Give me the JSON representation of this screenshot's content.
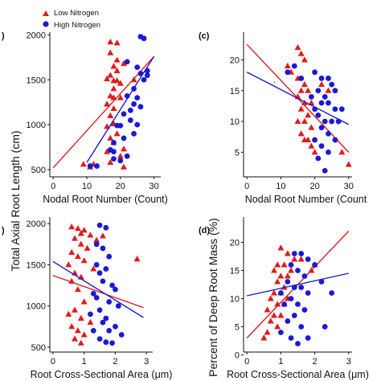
{
  "legend": {
    "low_label": "Low Nitrogen",
    "high_label": "High Nitrogen",
    "low_color": "#e11b1b",
    "high_color": "#1a1ad4",
    "low_marker": "triangle",
    "high_marker": "circle"
  },
  "ylabels": {
    "left": "Total Axial Root Length (cm)",
    "right": "Percent of Deep Root Mass (%)"
  },
  "chart_data": [
    {
      "panel": "a",
      "panel_label": ")",
      "type": "scatter",
      "xlabel": "Nodal Root Number (Count)",
      "xlim": [
        -1,
        32
      ],
      "ylim": [
        420,
        2030
      ],
      "xticks": [
        0,
        10,
        20,
        30
      ],
      "yticks": [
        500,
        1000,
        1500,
        2000
      ],
      "axes": "left-bottom",
      "series": [
        {
          "name": "Low Nitrogen",
          "marker": "triangle",
          "points": [
            [
              9,
              560
            ],
            [
              11,
              530
            ],
            [
              12,
              560
            ],
            [
              17,
              1920
            ],
            [
              19,
              1910
            ],
            [
              17,
              1800
            ],
            [
              19,
              1720
            ],
            [
              18,
              1650
            ],
            [
              17,
              1550
            ],
            [
              19,
              1600
            ],
            [
              21,
              1680
            ],
            [
              16,
              1510
            ],
            [
              18,
              1490
            ],
            [
              19,
              1490
            ],
            [
              20,
              1460
            ],
            [
              18,
              1400
            ],
            [
              17,
              1320
            ],
            [
              18,
              1300
            ],
            [
              20,
              1300
            ],
            [
              16,
              1230
            ],
            [
              18,
              1180
            ],
            [
              17,
              1100
            ],
            [
              18,
              1010
            ],
            [
              16,
              980
            ],
            [
              19,
              900
            ],
            [
              17,
              850
            ],
            [
              18,
              800
            ],
            [
              21,
              730
            ],
            [
              16,
              700
            ],
            [
              20,
              650
            ],
            [
              17,
              580
            ],
            [
              21,
              530
            ],
            [
              24,
              1500
            ]
          ],
          "fit": [
            [
              0,
              520
            ],
            [
              30,
              1760
            ]
          ]
        },
        {
          "name": "High Nitrogen",
          "marker": "circle",
          "points": [
            [
              26,
              1980
            ],
            [
              27,
              1960
            ],
            [
              25,
              1640
            ],
            [
              28,
              1600
            ],
            [
              26,
              1570
            ],
            [
              28,
              1550
            ],
            [
              24,
              1400
            ],
            [
              25,
              1300
            ],
            [
              22,
              1320
            ],
            [
              24,
              1230
            ],
            [
              26,
              1200
            ],
            [
              23,
              1160
            ],
            [
              21,
              1120
            ],
            [
              23,
              1050
            ],
            [
              25,
              1000
            ],
            [
              20,
              990
            ],
            [
              19,
              990
            ],
            [
              24,
              900
            ],
            [
              21,
              850
            ],
            [
              18,
              800
            ],
            [
              17,
              720
            ],
            [
              18,
              700
            ],
            [
              22,
              650
            ],
            [
              18,
              620
            ],
            [
              20,
              600
            ],
            [
              11,
              540
            ],
            [
              13,
              540
            ],
            [
              22,
              1700
            ],
            [
              27,
              1500
            ]
          ],
          "fit": [
            [
              10,
              580
            ],
            [
              30,
              1760
            ]
          ]
        }
      ]
    },
    {
      "panel": "c",
      "panel_label": "(c)",
      "type": "scatter",
      "xlabel": "Nodal Root Number (Count",
      "xlim": [
        -1,
        31
      ],
      "ylim": [
        1,
        24.5
      ],
      "xticks": [
        0,
        10,
        20,
        30
      ],
      "yticks": [
        5,
        10,
        15,
        20
      ],
      "axes": "left-bottom",
      "series": [
        {
          "name": "Low Nitrogen",
          "marker": "triangle",
          "points": [
            [
              15,
              22
            ],
            [
              16,
              21
            ],
            [
              17,
              20
            ],
            [
              12,
              19
            ],
            [
              13,
              18
            ],
            [
              15,
              17
            ],
            [
              17,
              16
            ],
            [
              18,
              15
            ],
            [
              16,
              15
            ],
            [
              15,
              14
            ],
            [
              17,
              13
            ],
            [
              19,
              13
            ],
            [
              16,
              12
            ],
            [
              18,
              11
            ],
            [
              17,
              10
            ],
            [
              15,
              10
            ],
            [
              19,
              9
            ],
            [
              16,
              8
            ],
            [
              18,
              7
            ],
            [
              17,
              7
            ],
            [
              19,
              6
            ],
            [
              20,
              5
            ],
            [
              28,
              5
            ],
            [
              30,
              3
            ],
            [
              22,
              16
            ],
            [
              24,
              15
            ]
          ],
          "fit": [
            [
              0,
              22.5
            ],
            [
              30,
              5
            ]
          ]
        },
        {
          "name": "High Nitrogen",
          "marker": "circle",
          "points": [
            [
              12,
              18
            ],
            [
              20,
              18
            ],
            [
              22,
              17
            ],
            [
              24,
              17
            ],
            [
              25,
              16
            ],
            [
              26,
              15
            ],
            [
              21,
              15
            ],
            [
              23,
              14
            ],
            [
              19,
              14
            ],
            [
              22,
              13
            ],
            [
              24,
              13
            ],
            [
              20,
              12
            ],
            [
              26,
              12
            ],
            [
              28,
              12
            ],
            [
              21,
              11
            ],
            [
              23,
              10
            ],
            [
              25,
              10
            ],
            [
              27,
              10
            ],
            [
              22,
              9
            ],
            [
              24,
              8
            ],
            [
              20,
              7
            ],
            [
              26,
              7
            ],
            [
              22,
              6
            ],
            [
              24,
              5
            ],
            [
              21,
              4
            ],
            [
              23,
              2
            ],
            [
              14,
              19
            ],
            [
              16,
              17
            ]
          ],
          "fit": [
            [
              0,
              18
            ],
            [
              30,
              9.5
            ]
          ]
        }
      ]
    },
    {
      "panel": "b",
      "panel_label": ")",
      "type": "scatter",
      "xlabel": "Root Cross-Sectional Area (",
      "xlabel_unit": "μm",
      "xlabel_close": ")",
      "xlim": [
        -0.1,
        3.2
      ],
      "ylim": [
        440,
        2080
      ],
      "xticks": [
        0,
        1,
        2,
        3
      ],
      "yticks": [
        500,
        1000,
        1500,
        2000
      ],
      "axes": "left-bottom",
      "series": [
        {
          "name": "Low Nitrogen",
          "marker": "triangle",
          "points": [
            [
              0.6,
              1960
            ],
            [
              0.8,
              1940
            ],
            [
              1.0,
              1920
            ],
            [
              0.9,
              1880
            ],
            [
              1.2,
              1860
            ],
            [
              0.7,
              1820
            ],
            [
              0.9,
              1750
            ],
            [
              1.1,
              1700
            ],
            [
              0.6,
              1650
            ],
            [
              0.8,
              1600
            ],
            [
              1.0,
              1550
            ],
            [
              0.5,
              1500
            ],
            [
              0.7,
              1400
            ],
            [
              1.3,
              1450
            ],
            [
              0.9,
              1350
            ],
            [
              0.6,
              1300
            ],
            [
              0.8,
              1200
            ],
            [
              1.0,
              1050
            ],
            [
              0.7,
              950
            ],
            [
              0.5,
              900
            ],
            [
              0.9,
              850
            ],
            [
              1.2,
              800
            ],
            [
              0.6,
              750
            ],
            [
              0.8,
              700
            ],
            [
              1.0,
              650
            ],
            [
              0.7,
              600
            ],
            [
              0.9,
              550
            ],
            [
              2.7,
              1570
            ],
            [
              1.4,
              1800
            ],
            [
              1.6,
              1850
            ]
          ],
          "fit": [
            [
              0,
              1370
            ],
            [
              2.9,
              980
            ]
          ]
        },
        {
          "name": "High Nitrogen",
          "marker": "circle",
          "points": [
            [
              1.5,
              1980
            ],
            [
              1.7,
              1950
            ],
            [
              1.4,
              1750
            ],
            [
              1.6,
              1700
            ],
            [
              1.8,
              1600
            ],
            [
              1.4,
              1500
            ],
            [
              1.7,
              1450
            ],
            [
              1.5,
              1400
            ],
            [
              1.6,
              1300
            ],
            [
              1.9,
              1250
            ],
            [
              2.0,
              1200
            ],
            [
              1.3,
              1150
            ],
            [
              1.4,
              1100
            ],
            [
              1.8,
              1050
            ],
            [
              2.1,
              1000
            ],
            [
              1.5,
              950
            ],
            [
              1.2,
              900
            ],
            [
              1.7,
              850
            ],
            [
              1.6,
              800
            ],
            [
              2.0,
              750
            ],
            [
              1.3,
              700
            ],
            [
              1.8,
              700
            ],
            [
              2.2,
              650
            ],
            [
              1.5,
              600
            ],
            [
              1.7,
              560
            ],
            [
              1.9,
              550
            ]
          ],
          "fit": [
            [
              0,
              1540
            ],
            [
              2.9,
              860
            ]
          ]
        }
      ]
    },
    {
      "panel": "d",
      "panel_label": "(d)",
      "type": "scatter",
      "xlabel": "Root Cross-Sectional Area (",
      "xlabel_unit": "μm",
      "xlabel_close": ")",
      "xlim": [
        -0.1,
        3.1
      ],
      "ylim": [
        0.5,
        24.5
      ],
      "xticks": [
        0,
        1,
        2,
        3
      ],
      "yticks": [
        0,
        5,
        10,
        15,
        20
      ],
      "axes": "left-bottom",
      "series": [
        {
          "name": "Low Nitrogen",
          "marker": "triangle",
          "points": [
            [
              1.0,
              19
            ],
            [
              1.2,
              18
            ],
            [
              1.4,
              17
            ],
            [
              0.9,
              16
            ],
            [
              1.1,
              16
            ],
            [
              1.3,
              15
            ],
            [
              0.8,
              15
            ],
            [
              1.0,
              14
            ],
            [
              1.2,
              14
            ],
            [
              0.9,
              13
            ],
            [
              1.1,
              12
            ],
            [
              0.8,
              11
            ],
            [
              1.0,
              11
            ],
            [
              1.2,
              10
            ],
            [
              0.7,
              10
            ],
            [
              0.9,
              9
            ],
            [
              1.1,
              9
            ],
            [
              0.6,
              8
            ],
            [
              0.8,
              7
            ],
            [
              1.0,
              7
            ],
            [
              0.7,
              6
            ],
            [
              0.9,
              5
            ],
            [
              0.6,
              4
            ],
            [
              0.5,
              3
            ],
            [
              1.9,
              15
            ],
            [
              2.0,
              16
            ],
            [
              1.6,
              17
            ]
          ],
          "fit": [
            [
              0,
              3
            ],
            [
              3,
              22
            ]
          ]
        },
        {
          "name": "High Nitrogen",
          "marker": "circle",
          "points": [
            [
              1.4,
              18
            ],
            [
              1.6,
              18
            ],
            [
              1.8,
              17
            ],
            [
              1.3,
              16
            ],
            [
              2.0,
              16
            ],
            [
              1.5,
              15
            ],
            [
              1.7,
              14
            ],
            [
              1.2,
              13
            ],
            [
              2.2,
              13
            ],
            [
              1.4,
              12
            ],
            [
              1.6,
              12
            ],
            [
              1.0,
              11
            ],
            [
              1.8,
              11
            ],
            [
              1.3,
              10
            ],
            [
              1.5,
              9
            ],
            [
              1.1,
              9
            ],
            [
              1.7,
              8
            ],
            [
              1.4,
              7
            ],
            [
              1.2,
              6
            ],
            [
              1.6,
              5
            ],
            [
              1.0,
              4
            ],
            [
              1.3,
              3
            ],
            [
              1.8,
              3
            ],
            [
              2.3,
              5
            ],
            [
              1.5,
              2
            ],
            [
              2.5,
              11
            ]
          ],
          "fit": [
            [
              0,
              10.5
            ],
            [
              3,
              14.5
            ]
          ]
        }
      ]
    }
  ]
}
